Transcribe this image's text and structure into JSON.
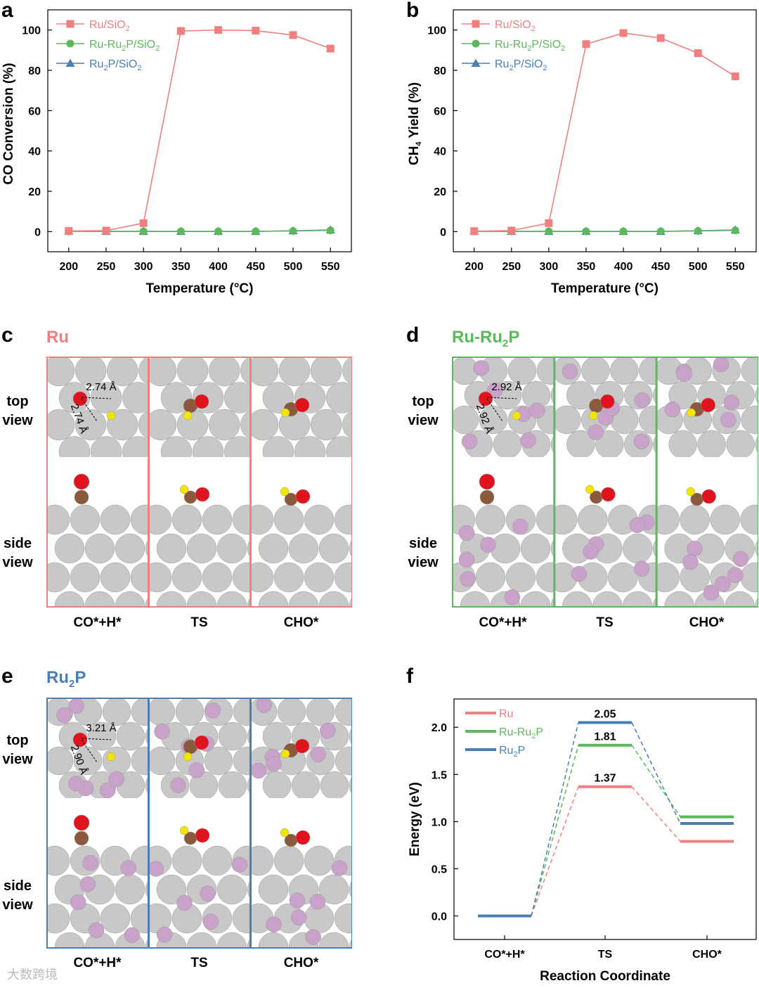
{
  "colors": {
    "ru": "#f08080",
    "ru_ru2p": "#5cb85c",
    "ru2p": "#4a7fb5",
    "ru_atom": "#c8c8c8",
    "p_atom": "#c8a2c8",
    "o_atom": "#e0141e",
    "c_atom": "#8b5a3c",
    "h_atom": "#f2e600"
  },
  "panels": {
    "a": {
      "letter": "a"
    },
    "b": {
      "letter": "b"
    },
    "c": {
      "letter": "c",
      "title": "Ru"
    },
    "d": {
      "letter": "d",
      "title_main": "Ru-Ru",
      "title_sub": "2",
      "title_end": "P"
    },
    "e": {
      "letter": "e",
      "title_main": "Ru",
      "title_sub": "2",
      "title_end": "P"
    },
    "f": {
      "letter": "f"
    }
  },
  "structures": {
    "row_top": "top\nview",
    "row_side": "side\nview",
    "stages": [
      "CO*+H*",
      "TS",
      "CHO*"
    ],
    "c_distances": [
      "2.74 Å",
      "2.74 Å"
    ],
    "d_distances": [
      "2.92 Å",
      "2.92 Å"
    ],
    "e_distances": [
      "3.21 Å",
      "2.90 Å"
    ]
  },
  "watermark": "大数跨境",
  "chart_data": [
    {
      "id": "a",
      "type": "line",
      "xlabel": "Temperature (°C)",
      "ylabel": "CO Conversion (%)",
      "x": [
        200,
        250,
        300,
        350,
        400,
        450,
        500,
        550
      ],
      "xlim": [
        172,
        578
      ],
      "ylim": [
        -10,
        110
      ],
      "yticks": [
        0,
        20,
        40,
        60,
        80,
        100
      ],
      "grid": false,
      "legend": "top-left",
      "series": [
        {
          "name": "Ru/SiO2",
          "name_parts": [
            "Ru/SiO",
            "2",
            ""
          ],
          "color": "#f08080",
          "marker": "square",
          "values": [
            0.3,
            0.5,
            4.2,
            99.5,
            100.0,
            99.7,
            97.5,
            90.8
          ]
        },
        {
          "name": "Ru-Ru2P/SiO2",
          "name_parts": [
            "Ru-Ru",
            "2",
            "P/SiO",
            "2"
          ],
          "color": "#5cb85c",
          "marker": "circle",
          "values": [
            0.1,
            0.1,
            0.1,
            0.1,
            0.1,
            0.1,
            0.3,
            0.6
          ]
        },
        {
          "name": "Ru2P/SiO2",
          "name_parts": [
            "Ru",
            "2",
            "P/SiO",
            "2"
          ],
          "color": "#4a7fb5",
          "marker": "triangle",
          "values": [
            0.2,
            0.1,
            0.1,
            0.1,
            0.1,
            0.1,
            0.4,
            0.8
          ]
        }
      ]
    },
    {
      "id": "b",
      "type": "line",
      "xlabel": "Temperature (°C)",
      "ylabel_parts": [
        "CH",
        "4",
        " Yield (%)"
      ],
      "ylabel": "CH4 Yield (%)",
      "x": [
        200,
        250,
        300,
        350,
        400,
        450,
        500,
        550
      ],
      "xlim": [
        172,
        578
      ],
      "ylim": [
        -10,
        110
      ],
      "yticks": [
        0,
        20,
        40,
        60,
        80,
        100
      ],
      "grid": false,
      "legend": "top-left",
      "series": [
        {
          "name": "Ru/SiO2",
          "name_parts": [
            "Ru/SiO",
            "2",
            ""
          ],
          "color": "#f08080",
          "marker": "square",
          "values": [
            0.2,
            0.5,
            4.2,
            93.0,
            98.5,
            96.0,
            88.5,
            77.0
          ]
        },
        {
          "name": "Ru-Ru2P/SiO2",
          "name_parts": [
            "Ru-Ru",
            "2",
            "P/SiO",
            "2"
          ],
          "color": "#5cb85c",
          "marker": "circle",
          "values": [
            0.1,
            0.1,
            0.1,
            0.1,
            0.1,
            0.1,
            0.3,
            0.6
          ]
        },
        {
          "name": "Ru2P/SiO2",
          "name_parts": [
            "Ru",
            "2",
            "P/SiO",
            "2"
          ],
          "color": "#4a7fb5",
          "marker": "triangle",
          "values": [
            0.2,
            0.1,
            0.1,
            0.1,
            0.1,
            0.1,
            0.4,
            0.8
          ]
        }
      ]
    },
    {
      "id": "f",
      "type": "line",
      "xlabel": "Reaction Coordinate",
      "ylabel": "Energy (eV)",
      "categories": [
        "CO*+H*",
        "TS",
        "CHO*"
      ],
      "ylim": [
        -0.25,
        2.3
      ],
      "yticks": [
        0.0,
        0.5,
        1.0,
        1.5,
        2.0
      ],
      "ytick_labels": [
        "0.0",
        "0.5",
        "1.0",
        "1.5",
        "2.0"
      ],
      "grid": false,
      "legend": "top-left",
      "series": [
        {
          "name": "Ru",
          "name_parts": [
            "Ru",
            "",
            ""
          ],
          "color": "#f08080",
          "values": [
            0.0,
            1.37,
            0.79
          ],
          "label": "1.37"
        },
        {
          "name": "Ru-Ru2P",
          "name_parts": [
            "Ru-Ru",
            "2",
            "P"
          ],
          "color": "#5cb85c",
          "values": [
            0.0,
            1.81,
            1.05
          ],
          "label": "1.81"
        },
        {
          "name": "Ru2P",
          "name_parts": [
            "Ru",
            "2",
            "P"
          ],
          "color": "#4a7fb5",
          "values": [
            0.0,
            2.05,
            0.98
          ],
          "label": "2.05"
        }
      ]
    }
  ]
}
